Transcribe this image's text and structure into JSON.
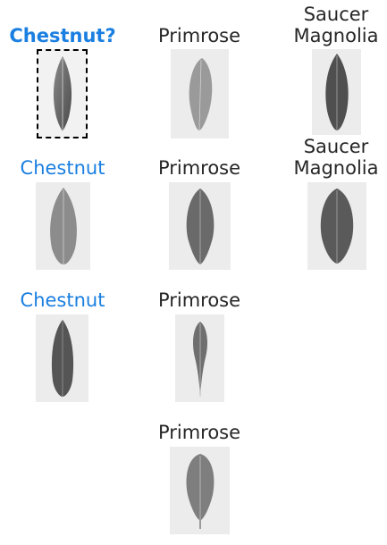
{
  "grid": {
    "accent_color": "#1a7fe0",
    "text_color": "#262626",
    "query": {
      "label": "Chestnut?",
      "selected": true
    },
    "columns": [
      {
        "name": "chestnut",
        "items": [
          {
            "label": "Chestnut",
            "icon": "leaf-icon"
          },
          {
            "label": "Chestnut",
            "icon": "leaf-icon"
          }
        ]
      },
      {
        "name": "primrose",
        "items": [
          {
            "label": "Primrose",
            "icon": "leaf-icon"
          },
          {
            "label": "Primrose",
            "icon": "leaf-icon"
          },
          {
            "label": "Primrose",
            "icon": "leaf-icon"
          },
          {
            "label": "Primrose",
            "icon": "leaf-icon"
          }
        ]
      },
      {
        "name": "saucer-magnolia",
        "items": [
          {
            "label": "Saucer\nMagnolia",
            "icon": "leaf-icon"
          },
          {
            "label": "Saucer\nMagnolia",
            "icon": "leaf-icon"
          }
        ]
      }
    ]
  }
}
